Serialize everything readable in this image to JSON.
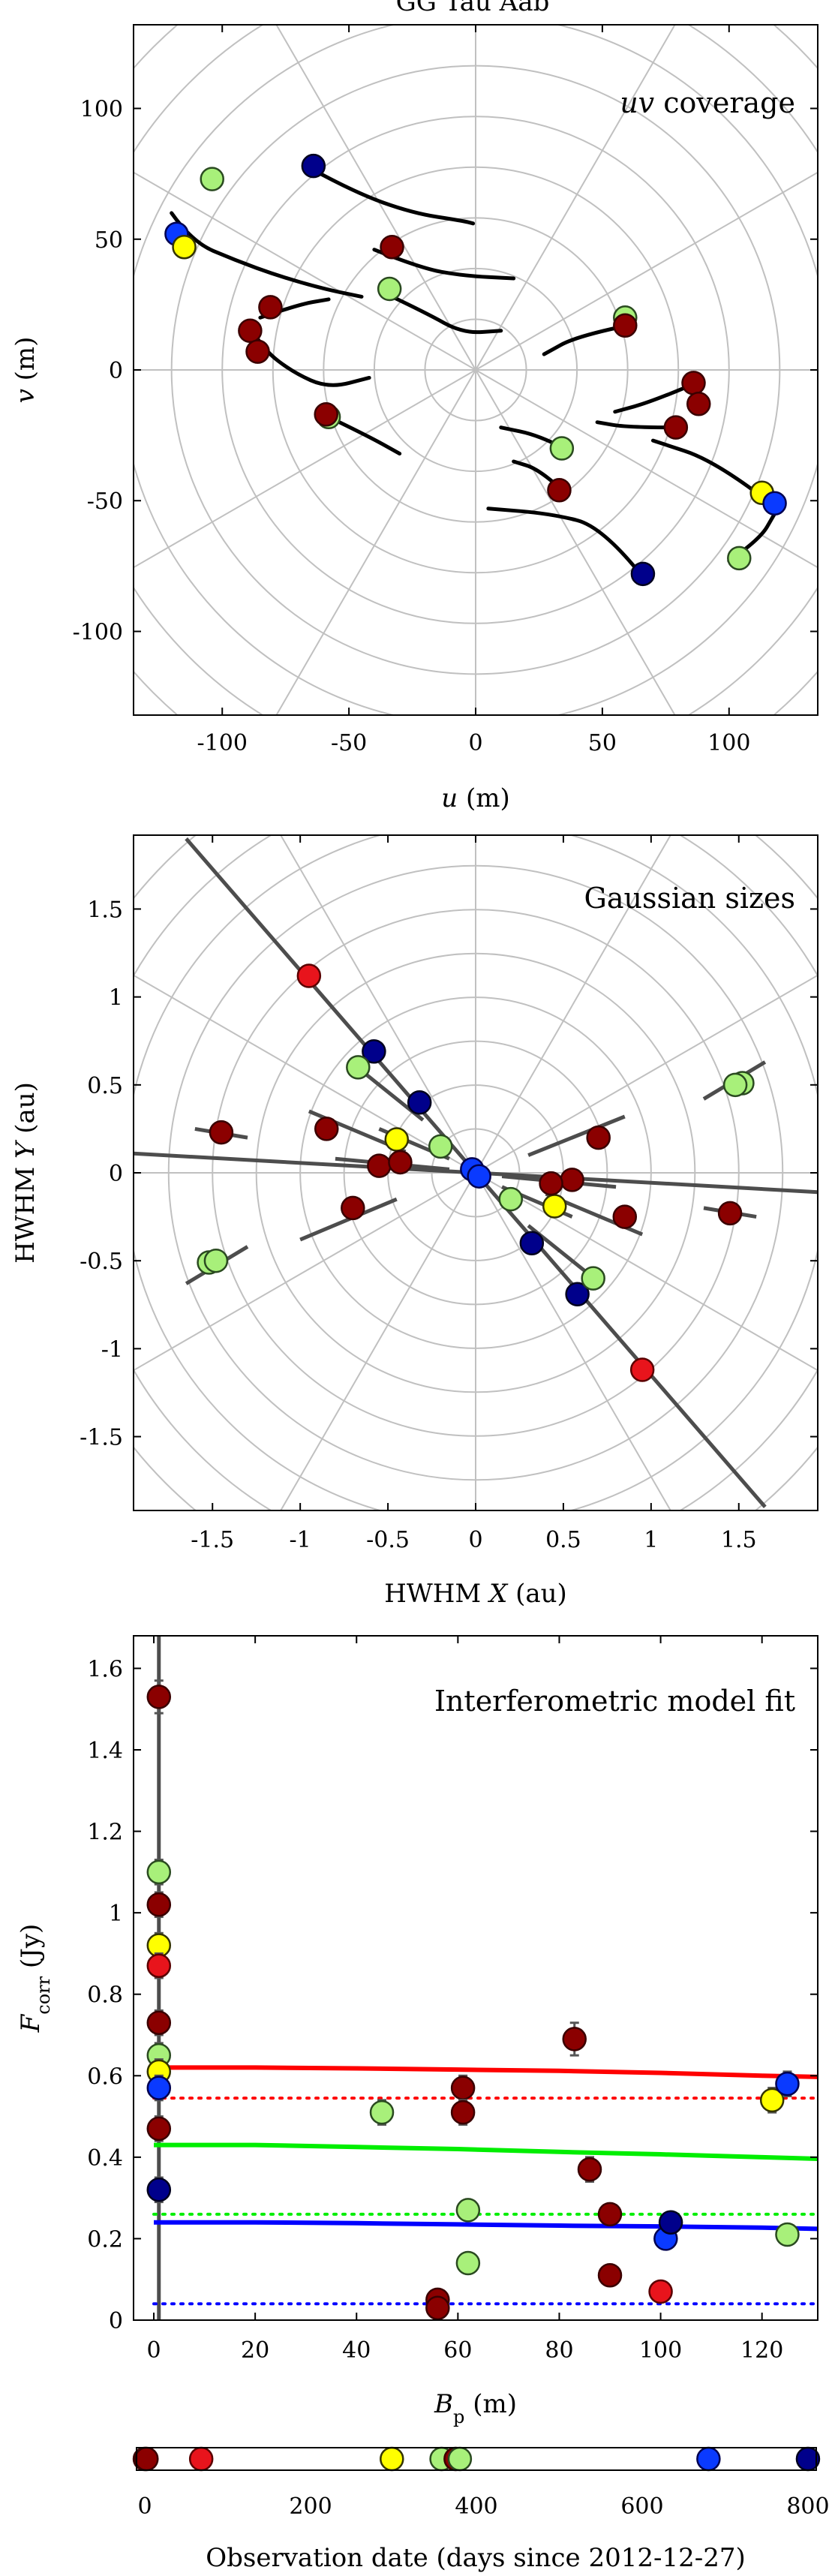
{
  "figure_title": "GG Tau Aab",
  "colors": {
    "dark_red": "#8b0000",
    "red": "#e8141c",
    "yellow": "#ffff00",
    "light_green": "#a8f07a",
    "blue": "#0a3aff",
    "dark_blue": "#00008b",
    "grid": "#c0c0c0",
    "curve": "#000000",
    "sizes_line": "#4d4d4d",
    "model_red": "#ff0000",
    "model_green": "#00ee00",
    "model_blue": "#0000ff"
  },
  "chart_data": [
    {
      "type": "scatter",
      "panel": "uv",
      "title": "uv coverage",
      "title_italic": "uv",
      "title_rest": " coverage",
      "xlabel_var": "u",
      "xlabel_unit": " (m)",
      "ylabel_var": "v",
      "ylabel_unit": " (m)",
      "xlim": [
        -135,
        135
      ],
      "ylim": [
        -132,
        132
      ],
      "xticks": [
        -100,
        -50,
        0,
        50,
        100
      ],
      "yticks": [
        -100,
        -50,
        0,
        50,
        100
      ],
      "tick_labels_x": [
        "-100",
        "-50",
        "0",
        "50",
        "100"
      ],
      "tick_labels_y": [
        "-100",
        "-50",
        "0",
        "50",
        "100"
      ],
      "polar_grid": {
        "rings": [
          20,
          40,
          60,
          80,
          100,
          120,
          140,
          160,
          180
        ],
        "spokes_deg": [
          0,
          30,
          60,
          90,
          120,
          150
        ]
      },
      "tracks": [
        [
          [
            -65,
            77
          ],
          [
            -48,
            68
          ],
          [
            -25,
            60
          ],
          [
            -5,
            57
          ],
          [
            -1,
            56
          ]
        ],
        [
          [
            -120,
            60
          ],
          [
            -112,
            49
          ],
          [
            -95,
            42
          ],
          [
            -78,
            36
          ],
          [
            -60,
            31
          ],
          [
            -45,
            28
          ]
        ],
        [
          [
            -88,
            15
          ],
          [
            -84,
            8
          ],
          [
            -72,
            -1
          ],
          [
            -58,
            -7
          ],
          [
            -42,
            -3
          ]
        ],
        [
          [
            -33,
            28
          ],
          [
            -20,
            22
          ],
          [
            -5,
            14
          ],
          [
            10,
            15
          ]
        ],
        [
          [
            -40,
            46
          ],
          [
            -22,
            39
          ],
          [
            -5,
            36
          ],
          [
            15,
            35
          ]
        ],
        [
          [
            -58,
            -18
          ],
          [
            -43,
            -25
          ],
          [
            -30,
            -32
          ]
        ],
        [
          [
            -85,
            20
          ],
          [
            -70,
            25
          ],
          [
            -58,
            27
          ]
        ],
        [
          [
            60,
            17
          ],
          [
            40,
            13
          ],
          [
            27,
            6
          ]
        ],
        [
          [
            87,
            -5
          ],
          [
            70,
            -12
          ],
          [
            55,
            -16
          ]
        ],
        [
          [
            78,
            -22
          ],
          [
            60,
            -22
          ],
          [
            48,
            -20
          ]
        ],
        [
          [
            33,
            -45
          ],
          [
            25,
            -38
          ],
          [
            15,
            -35
          ]
        ],
        [
          [
            35,
            -30
          ],
          [
            25,
            -25
          ],
          [
            10,
            -22
          ]
        ],
        [
          [
            65,
            -78
          ],
          [
            50,
            -60
          ],
          [
            30,
            -55
          ],
          [
            5,
            -53
          ]
        ],
        [
          [
            115,
            -50
          ],
          [
            95,
            -35
          ],
          [
            70,
            -27
          ]
        ],
        [
          [
            100,
            -73
          ],
          [
            112,
            -65
          ],
          [
            118,
            -55
          ]
        ]
      ],
      "points": [
        {
          "u": -64,
          "v": 78,
          "c": "dark_blue"
        },
        {
          "u": -104,
          "v": 73,
          "c": "light_green"
        },
        {
          "u": -118,
          "v": 52,
          "c": "blue"
        },
        {
          "u": -115,
          "v": 47,
          "c": "yellow"
        },
        {
          "u": -81,
          "v": 24,
          "c": "dark_red"
        },
        {
          "u": -89,
          "v": 15,
          "c": "dark_red"
        },
        {
          "u": -86,
          "v": 7,
          "c": "dark_red"
        },
        {
          "u": -33,
          "v": 47,
          "c": "dark_red"
        },
        {
          "u": -34,
          "v": 31,
          "c": "light_green"
        },
        {
          "u": -58,
          "v": -18,
          "c": "light_green"
        },
        {
          "u": -59,
          "v": -17,
          "c": "dark_red"
        },
        {
          "u": 59,
          "v": 20,
          "c": "light_green"
        },
        {
          "u": 59,
          "v": 17,
          "c": "dark_red"
        },
        {
          "u": 86,
          "v": -5,
          "c": "dark_red"
        },
        {
          "u": 88,
          "v": -13,
          "c": "dark_red"
        },
        {
          "u": 79,
          "v": -22,
          "c": "dark_red"
        },
        {
          "u": 34,
          "v": -30,
          "c": "light_green"
        },
        {
          "u": 33,
          "v": -46,
          "c": "dark_red"
        },
        {
          "u": 113,
          "v": -47,
          "c": "yellow"
        },
        {
          "u": 118,
          "v": -51,
          "c": "blue"
        },
        {
          "u": 104,
          "v": -72,
          "c": "light_green"
        },
        {
          "u": 66,
          "v": -78,
          "c": "dark_blue"
        }
      ]
    },
    {
      "type": "scatter",
      "panel": "sizes",
      "title": "Gaussian sizes",
      "xlabel_pre": "HWHM ",
      "xlabel_var": "X",
      "xlabel_unit": " (au)",
      "ylabel_pre": "HWHM ",
      "ylabel_var": "Y",
      "ylabel_unit": " (au)",
      "xlim": [
        -1.95,
        1.95
      ],
      "ylim": [
        -1.92,
        1.92
      ],
      "xticks": [
        -1.5,
        -1,
        -0.5,
        0,
        0.5,
        1,
        1.5
      ],
      "yticks": [
        -1.5,
        -1,
        -0.5,
        0,
        0.5,
        1,
        1.5
      ],
      "tick_labels_x": [
        "-1.5",
        "-1",
        "-0.5",
        "0",
        "0.5",
        "1",
        "1.5"
      ],
      "tick_labels_y": [
        "-1.5",
        "-1",
        "-0.5",
        "0",
        "0.5",
        "1",
        "1.5"
      ],
      "polar_grid": {
        "rings": [
          0.25,
          0.5,
          0.75,
          1.0,
          1.25,
          1.5,
          1.75,
          2.0,
          2.25,
          2.5
        ],
        "spokes_deg": [
          0,
          30,
          60,
          90,
          120,
          150
        ]
      },
      "major_axis_lines": [
        {
          "from": [
            -1.65,
            1.9
          ],
          "to": [
            1.65,
            -1.9
          ]
        },
        {
          "from": [
            -1.95,
            0.11
          ],
          "to": [
            1.95,
            -0.11
          ]
        }
      ],
      "segments": [
        [
          [
            -1.65,
            -0.63
          ],
          [
            -1.3,
            -0.42
          ]
        ],
        [
          [
            1.3,
            0.42
          ],
          [
            1.65,
            0.63
          ]
        ],
        [
          [
            -1.6,
            0.25
          ],
          [
            -1.3,
            0.2
          ]
        ],
        [
          [
            1.3,
            -0.2
          ],
          [
            1.6,
            -0.25
          ]
        ],
        [
          [
            -0.95,
            0.35
          ],
          [
            -0.4,
            0.12
          ]
        ],
        [
          [
            0.4,
            -0.12
          ],
          [
            0.95,
            -0.35
          ]
        ],
        [
          [
            -1.0,
            -0.38
          ],
          [
            -0.45,
            -0.15
          ]
        ],
        [
          [
            0.3,
            0.1
          ],
          [
            0.85,
            0.32
          ]
        ],
        [
          [
            -0.8,
            0.08
          ],
          [
            -0.15,
            0.02
          ]
        ],
        [
          [
            0.15,
            -0.02
          ],
          [
            0.8,
            -0.08
          ]
        ],
        [
          [
            -0.7,
            0.62
          ],
          [
            -0.3,
            0.3
          ]
        ],
        [
          [
            0.3,
            -0.3
          ],
          [
            0.7,
            -0.62
          ]
        ],
        [
          [
            -0.55,
            0.25
          ],
          [
            -0.15,
            0.08
          ]
        ],
        [
          [
            0.15,
            -0.08
          ],
          [
            0.55,
            -0.25
          ]
        ]
      ],
      "points": [
        {
          "x": -0.95,
          "y": 1.12,
          "c": "red"
        },
        {
          "x": 0.95,
          "y": -1.12,
          "c": "red"
        },
        {
          "x": -0.58,
          "y": 0.69,
          "c": "dark_blue"
        },
        {
          "x": 0.58,
          "y": -0.69,
          "c": "dark_blue"
        },
        {
          "x": -0.67,
          "y": 0.6,
          "c": "light_green"
        },
        {
          "x": 0.67,
          "y": -0.6,
          "c": "light_green"
        },
        {
          "x": -0.32,
          "y": 0.4,
          "c": "dark_blue"
        },
        {
          "x": 0.32,
          "y": -0.4,
          "c": "dark_blue"
        },
        {
          "x": -1.45,
          "y": 0.23,
          "c": "dark_red"
        },
        {
          "x": 1.45,
          "y": -0.23,
          "c": "dark_red"
        },
        {
          "x": -0.85,
          "y": 0.25,
          "c": "dark_red"
        },
        {
          "x": 0.85,
          "y": -0.25,
          "c": "dark_red"
        },
        {
          "x": -0.45,
          "y": 0.19,
          "c": "yellow"
        },
        {
          "x": 0.45,
          "y": -0.19,
          "c": "yellow"
        },
        {
          "x": -0.2,
          "y": 0.15,
          "c": "light_green"
        },
        {
          "x": 0.2,
          "y": -0.15,
          "c": "light_green"
        },
        {
          "x": -0.55,
          "y": 0.04,
          "c": "dark_red"
        },
        {
          "x": 0.55,
          "y": -0.04,
          "c": "dark_red"
        },
        {
          "x": -0.43,
          "y": 0.06,
          "c": "dark_red"
        },
        {
          "x": 0.43,
          "y": -0.06,
          "c": "dark_red"
        },
        {
          "x": -0.7,
          "y": -0.2,
          "c": "dark_red"
        },
        {
          "x": 0.7,
          "y": 0.2,
          "c": "dark_red"
        },
        {
          "x": -1.52,
          "y": -0.51,
          "c": "light_green"
        },
        {
          "x": -1.48,
          "y": -0.5,
          "c": "light_green"
        },
        {
          "x": 1.52,
          "y": 0.51,
          "c": "light_green"
        },
        {
          "x": 1.48,
          "y": 0.5,
          "c": "light_green"
        },
        {
          "x": -0.02,
          "y": 0.02,
          "c": "blue"
        },
        {
          "x": 0.02,
          "y": -0.02,
          "c": "blue"
        }
      ]
    },
    {
      "type": "scatter",
      "panel": "fit",
      "title": "Interferometric model fit",
      "xlabel_var": "B",
      "xlabel_sub": "p",
      "xlabel_unit": " (m)",
      "ylabel_var": "F",
      "ylabel_sub": "corr",
      "ylabel_unit": " (Jy)",
      "xlim": [
        -4,
        131
      ],
      "ylim": [
        0,
        1.68
      ],
      "xticks": [
        0,
        20,
        40,
        60,
        80,
        100,
        120
      ],
      "yticks": [
        0,
        0.2,
        0.4,
        0.6,
        0.8,
        1,
        1.2,
        1.4,
        1.6
      ],
      "tick_labels_x": [
        "0",
        "20",
        "40",
        "60",
        "80",
        "100",
        "120"
      ],
      "tick_labels_y": [
        "0",
        "0.2",
        "0.4",
        "0.6",
        "0.8",
        "1",
        "1.2",
        "1.4",
        "1.6"
      ],
      "model_lines": [
        {
          "c": "model_red",
          "style": "solid",
          "x": [
            0,
            20,
            40,
            60,
            80,
            100,
            120,
            131
          ],
          "y": [
            0.62,
            0.62,
            0.618,
            0.615,
            0.612,
            0.607,
            0.6,
            0.597
          ]
        },
        {
          "c": "model_green",
          "style": "solid",
          "x": [
            0,
            20,
            40,
            60,
            80,
            100,
            120,
            131
          ],
          "y": [
            0.43,
            0.43,
            0.425,
            0.42,
            0.413,
            0.407,
            0.4,
            0.396
          ]
        },
        {
          "c": "model_blue",
          "style": "solid",
          "x": [
            0,
            20,
            40,
            60,
            80,
            100,
            120,
            131
          ],
          "y": [
            0.24,
            0.24,
            0.238,
            0.235,
            0.232,
            0.23,
            0.227,
            0.224
          ]
        },
        {
          "c": "model_red",
          "style": "dotted",
          "x": [
            0,
            131
          ],
          "y": [
            0.545,
            0.545
          ]
        },
        {
          "c": "model_green",
          "style": "dotted",
          "x": [
            0,
            131
          ],
          "y": [
            0.26,
            0.26
          ]
        },
        {
          "c": "model_blue",
          "style": "dotted",
          "x": [
            0,
            131
          ],
          "y": [
            0.04,
            0.04
          ]
        }
      ],
      "points": [
        {
          "x": 1,
          "y": 1.53,
          "e": 0.04,
          "c": "dark_red"
        },
        {
          "x": 1,
          "y": 1.1,
          "e": 0.03,
          "c": "light_green"
        },
        {
          "x": 1,
          "y": 1.02,
          "e": 0.03,
          "c": "dark_red"
        },
        {
          "x": 1,
          "y": 0.92,
          "e": 0.03,
          "c": "yellow"
        },
        {
          "x": 1,
          "y": 0.87,
          "e": 0.03,
          "c": "red"
        },
        {
          "x": 1,
          "y": 0.73,
          "e": 0.03,
          "c": "dark_red"
        },
        {
          "x": 1,
          "y": 0.65,
          "e": 0.03,
          "c": "light_green"
        },
        {
          "x": 1,
          "y": 0.61,
          "e": 0.03,
          "c": "yellow"
        },
        {
          "x": 1,
          "y": 0.57,
          "e": 0.03,
          "c": "blue"
        },
        {
          "x": 1,
          "y": 0.47,
          "e": 0.03,
          "c": "dark_red"
        },
        {
          "x": 1,
          "y": 0.32,
          "e": 0.03,
          "c": "dark_blue"
        },
        {
          "x": 45,
          "y": 0.51,
          "e": 0.03,
          "c": "light_green"
        },
        {
          "x": 56,
          "y": 0.05,
          "e": 0.02,
          "c": "dark_red"
        },
        {
          "x": 56,
          "y": 0.03,
          "e": 0.02,
          "c": "dark_red"
        },
        {
          "x": 61,
          "y": 0.57,
          "e": 0.03,
          "c": "dark_red"
        },
        {
          "x": 61,
          "y": 0.51,
          "e": 0.03,
          "c": "dark_red"
        },
        {
          "x": 62,
          "y": 0.27,
          "e": 0.02,
          "c": "light_green"
        },
        {
          "x": 62,
          "y": 0.14,
          "e": 0.02,
          "c": "light_green"
        },
        {
          "x": 83,
          "y": 0.69,
          "e": 0.04,
          "c": "dark_red"
        },
        {
          "x": 86,
          "y": 0.37,
          "e": 0.03,
          "c": "dark_red"
        },
        {
          "x": 90,
          "y": 0.26,
          "e": 0.02,
          "c": "dark_red"
        },
        {
          "x": 90,
          "y": 0.11,
          "e": 0.02,
          "c": "dark_red"
        },
        {
          "x": 100,
          "y": 0.07,
          "e": 0.02,
          "c": "red"
        },
        {
          "x": 101,
          "y": 0.2,
          "e": 0.02,
          "c": "blue"
        },
        {
          "x": 102,
          "y": 0.24,
          "e": 0.02,
          "c": "dark_blue"
        },
        {
          "x": 122,
          "y": 0.54,
          "e": 0.03,
          "c": "yellow"
        },
        {
          "x": 125,
          "y": 0.58,
          "e": 0.03,
          "c": "blue"
        },
        {
          "x": 125,
          "y": 0.21,
          "e": 0.02,
          "c": "light_green"
        }
      ]
    },
    {
      "type": "scatter",
      "panel": "dates",
      "xlabel": "Observation date (days since 2012-12-27)",
      "xlim": [
        -10,
        810
      ],
      "xticks": [
        0,
        200,
        400,
        600,
        800
      ],
      "tick_labels_x": [
        "0",
        "200",
        "400",
        "600",
        "800"
      ],
      "points": [
        {
          "x": 0,
          "c": "dark_red"
        },
        {
          "x": 2,
          "c": "dark_red"
        },
        {
          "x": 68,
          "c": "red"
        },
        {
          "x": 298,
          "c": "yellow"
        },
        {
          "x": 358,
          "c": "light_green"
        },
        {
          "x": 375,
          "c": "dark_red"
        },
        {
          "x": 380,
          "c": "light_green"
        },
        {
          "x": 680,
          "c": "blue"
        },
        {
          "x": 800,
          "c": "dark_blue"
        }
      ]
    }
  ]
}
